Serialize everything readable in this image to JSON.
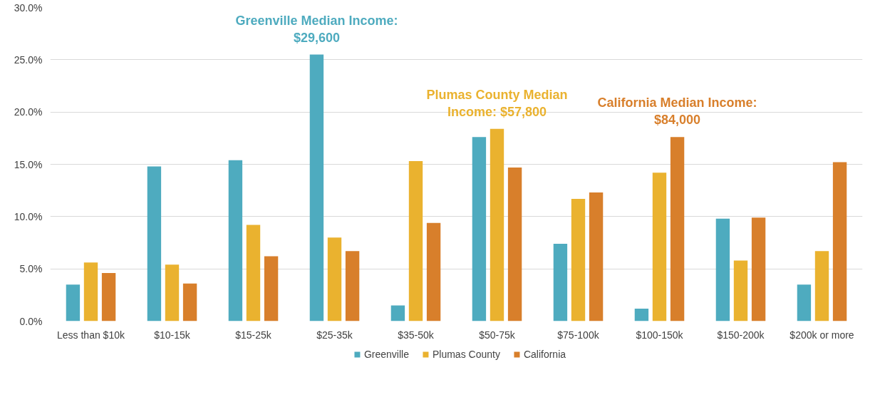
{
  "chart_data": {
    "type": "bar",
    "categories": [
      "Less than $10k",
      "$10-15k",
      "$15-25k",
      "$25-35k",
      "$35-50k",
      "$50-75k",
      "$75-100k",
      "$100-150k",
      "$150-200k",
      "$200k or more"
    ],
    "series": [
      {
        "name": "Greenville",
        "color": "#4eabbf",
        "values": [
          3.5,
          14.8,
          15.4,
          25.5,
          1.5,
          17.6,
          7.4,
          1.2,
          9.8,
          3.5
        ]
      },
      {
        "name": "Plumas County",
        "color": "#eab22f",
        "values": [
          5.6,
          5.4,
          9.2,
          8.0,
          15.3,
          18.4,
          11.7,
          14.2,
          5.8,
          6.7
        ]
      },
      {
        "name": "California",
        "color": "#d87f2b",
        "values": [
          4.6,
          3.6,
          6.2,
          6.7,
          9.4,
          14.7,
          12.3,
          17.6,
          9.9,
          15.2
        ]
      }
    ],
    "annotations": [
      "Greenville Median Income:\n$29,600",
      "Plumas County Median\nIncome: $57,800",
      "California Median Income:\n$84,000"
    ],
    "ylim": [
      0,
      30
    ],
    "yticks": [
      {
        "value": 0,
        "label": "0.0%"
      },
      {
        "value": 5,
        "label": "5.0%"
      },
      {
        "value": 10,
        "label": "10.0%"
      },
      {
        "value": 15,
        "label": "15.0%"
      },
      {
        "value": 20,
        "label": "20.0%"
      },
      {
        "value": 25,
        "label": "25.0%"
      },
      {
        "value": 30,
        "label": "30.0%"
      }
    ],
    "grid": "y",
    "legend": "bottom"
  }
}
